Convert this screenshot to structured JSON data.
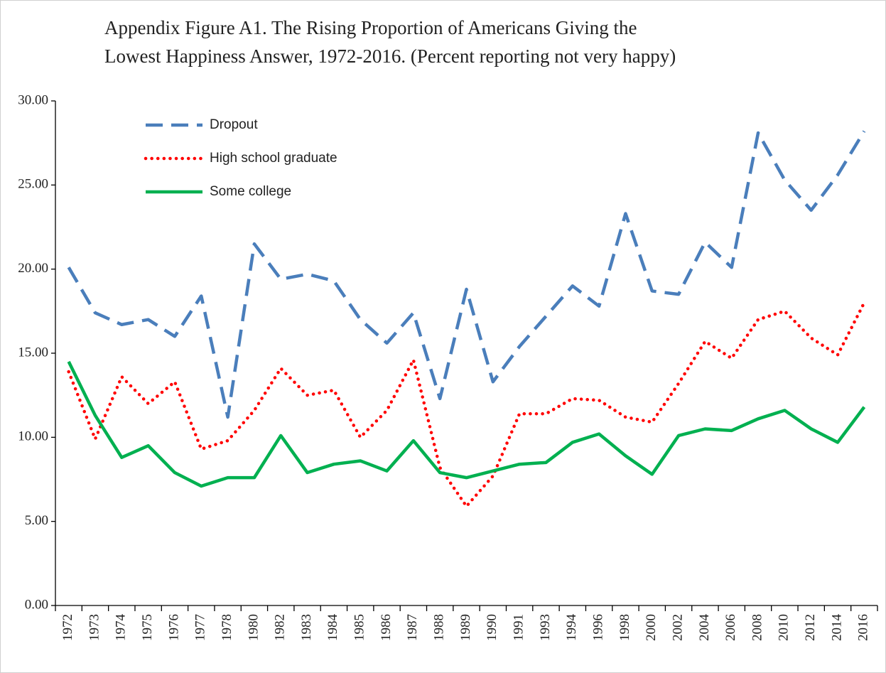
{
  "chart_data": {
    "type": "line",
    "title": [
      "Appendix Figure A1.  The Rising Proportion of Americans Giving the",
      "Lowest Happiness Answer, 1972-2016. (Percent reporting  not very happy)"
    ],
    "categories": [
      "1972",
      "1973",
      "1974",
      "1975",
      "1976",
      "1977",
      "1978",
      "1980",
      "1982",
      "1983",
      "1984",
      "1985",
      "1986",
      "1987",
      "1988",
      "1989",
      "1990",
      "1991",
      "1993",
      "1994",
      "1996",
      "1998",
      "2000",
      "2002",
      "2004",
      "2006",
      "2008",
      "2010",
      "2012",
      "2014",
      "2016"
    ],
    "series": [
      {
        "name": "Dropout",
        "color": "#4a7ebb",
        "dash": "dashed",
        "values": [
          20.1,
          17.4,
          16.7,
          17.0,
          16.0,
          18.4,
          11.2,
          21.5,
          19.4,
          19.7,
          19.3,
          17.0,
          15.6,
          17.4,
          12.3,
          18.8,
          13.3,
          15.4,
          17.2,
          19.0,
          17.8,
          23.3,
          18.7,
          18.5,
          21.6,
          20.1,
          28.1,
          25.3,
          23.5,
          25.6,
          28.2
        ]
      },
      {
        "name": "High school graduate",
        "color": "#ff0000",
        "dash": "dotted",
        "values": [
          13.9,
          9.9,
          13.6,
          12.0,
          13.3,
          9.3,
          9.8,
          11.6,
          14.1,
          12.5,
          12.8,
          10.0,
          11.6,
          14.6,
          8.2,
          5.9,
          7.7,
          11.4,
          11.4,
          12.3,
          12.2,
          11.2,
          10.9,
          13.2,
          15.7,
          14.7,
          17.0,
          17.5,
          15.9,
          14.9,
          18.0
        ]
      },
      {
        "name": "Some college",
        "color": "#00b050",
        "dash": "solid",
        "values": [
          14.5,
          11.3,
          8.8,
          9.5,
          7.9,
          7.1,
          7.6,
          7.6,
          10.1,
          7.9,
          8.4,
          8.6,
          8.0,
          9.8,
          7.9,
          7.6,
          8.0,
          8.4,
          8.5,
          9.7,
          10.2,
          8.9,
          7.8,
          10.1,
          10.5,
          10.4,
          11.1,
          11.6,
          10.5,
          9.7,
          11.8
        ]
      }
    ],
    "ylim": [
      0,
      30
    ],
    "yticks": [
      {
        "value": 0,
        "label": "0.00"
      },
      {
        "value": 5,
        "label": "5.00"
      },
      {
        "value": 10,
        "label": "10.00"
      },
      {
        "value": 15,
        "label": "15.00"
      },
      {
        "value": 20,
        "label": "20.00"
      },
      {
        "value": 25,
        "label": "25.00"
      },
      {
        "value": 30,
        "label": "30.00"
      }
    ],
    "grid": false,
    "legend": "top-left"
  }
}
